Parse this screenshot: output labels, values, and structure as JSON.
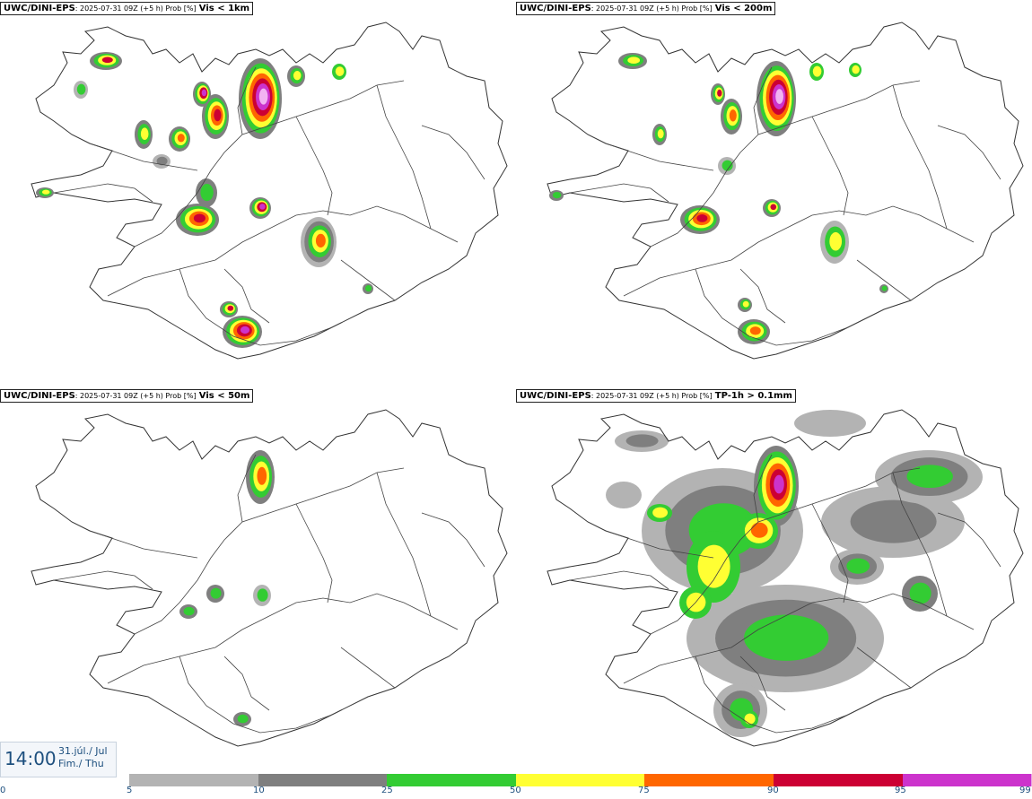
{
  "panels": [
    {
      "model": "UWC/DINI-EPS",
      "meta": ": 2025-07-31 09Z (+5 h) Prob [%]",
      "variable": "Vis < 1km"
    },
    {
      "model": "UWC/DINI-EPS",
      "meta": ": 2025-07-31 09Z (+5 h) Prob [%]",
      "variable": "Vis < 200m"
    },
    {
      "model": "UWC/DINI-EPS",
      "meta": ": 2025-07-31 09Z (+5 h) Prob [%]",
      "variable": "Vis < 50m"
    },
    {
      "model": "UWC/DINI-EPS",
      "meta": ": 2025-07-31 09Z (+5 h) Prob [%]",
      "variable": "TP-1h > 0.1mm"
    }
  ],
  "valid_time": {
    "time": "14:00",
    "date_line1": "31.júl./ Jul",
    "date_line2": "Fim./ Thu"
  },
  "legend": {
    "ticks": [
      "0",
      "5",
      "10",
      "25",
      "50",
      "75",
      "90",
      "95",
      "99"
    ],
    "colors": [
      "#b3b3b3",
      "#7f7f7f",
      "#33cc33",
      "#ffff33",
      "#ff6600",
      "#cc0033",
      "#cc33cc",
      "#f2b3f2"
    ]
  },
  "map_colors": {
    "land_outline": "#333333",
    "roads": "#444444"
  }
}
